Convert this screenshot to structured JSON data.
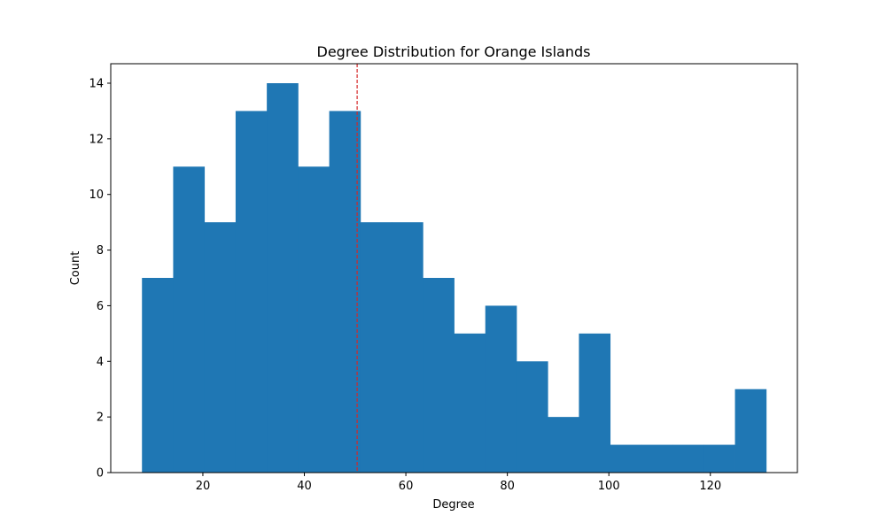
{
  "chart_data": {
    "type": "bar",
    "title": "Degree Distribution for Orange Islands",
    "xlabel": "Degree",
    "ylabel": "Count",
    "xlim": [
      1.85,
      137.15
    ],
    "ylim": [
      0,
      14.7
    ],
    "xticks": [
      20,
      40,
      60,
      80,
      100,
      120
    ],
    "yticks": [
      0,
      2,
      4,
      6,
      8,
      10,
      12,
      14
    ],
    "bin_edges": [
      8,
      14.15,
      20.3,
      26.45,
      32.6,
      38.75,
      44.9,
      51.05,
      57.2,
      63.35,
      69.5,
      75.65,
      81.8,
      87.95,
      94.1,
      100.25,
      106.4,
      112.55,
      118.7,
      124.85,
      131
    ],
    "counts": [
      7,
      11,
      9,
      13,
      14,
      11,
      13,
      9,
      9,
      7,
      5,
      6,
      4,
      2,
      5,
      1,
      1,
      1,
      1,
      3
    ],
    "mean_line": 50.4,
    "bar_color": "#1f77b4",
    "mean_line_color": "#d62728",
    "grid": false,
    "legend": false
  }
}
